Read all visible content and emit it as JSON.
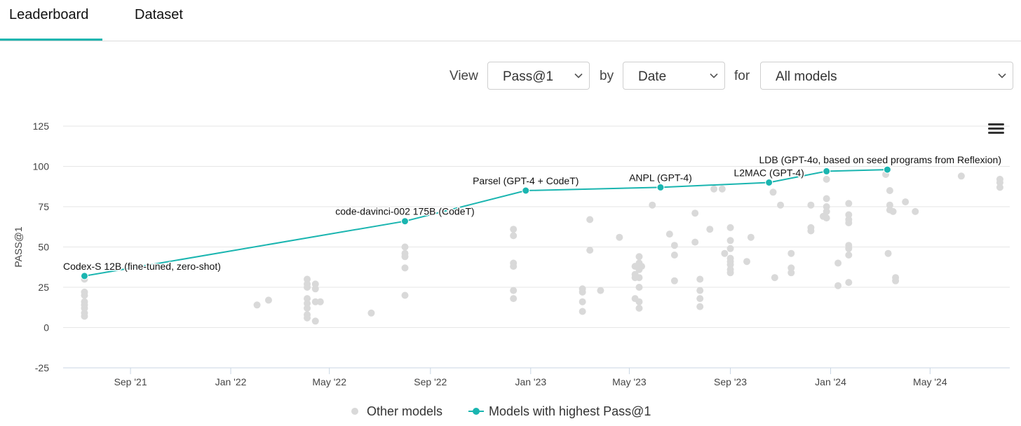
{
  "tabs": [
    {
      "label": "Leaderboard",
      "active": true
    },
    {
      "label": "Dataset",
      "active": false
    }
  ],
  "controls": {
    "view_label": "View",
    "view_value": "Pass@1",
    "by_label": "by",
    "by_value": "Date",
    "for_label": "for",
    "for_value": "All models"
  },
  "icons": {
    "menu": "hamburger-menu-icon",
    "dropdown": "chevron-down-icon"
  },
  "colors": {
    "highlight": "#1ab5b0",
    "other": "#d9d9d9",
    "grid": "#e6e6e6",
    "tab_underline": "#1ab5b0"
  },
  "chart_data": {
    "type": "scatter",
    "ylabel": "PASS@1",
    "ylim": [
      -25,
      125
    ],
    "yticks": [
      -25,
      0,
      25,
      50,
      75,
      100,
      125
    ],
    "xlim": [
      "2021-06-11",
      "2024-08-06"
    ],
    "xticks": [
      {
        "date": "2021-09-01",
        "label": "Sep '21"
      },
      {
        "date": "2022-01-01",
        "label": "Jan '22"
      },
      {
        "date": "2022-05-01",
        "label": "May '22"
      },
      {
        "date": "2022-09-01",
        "label": "Sep '22"
      },
      {
        "date": "2023-01-01",
        "label": "Jan '23"
      },
      {
        "date": "2023-05-01",
        "label": "May '23"
      },
      {
        "date": "2023-09-01",
        "label": "Sep '23"
      },
      {
        "date": "2024-01-01",
        "label": "Jan '24"
      },
      {
        "date": "2024-05-01",
        "label": "May '24"
      }
    ],
    "grid": true,
    "legend_position": "bottom-center",
    "series": [
      {
        "name": "Other models",
        "points": [
          {
            "x": "2021-07-07",
            "y": 30
          },
          {
            "x": "2021-07-07",
            "y": 22
          },
          {
            "x": "2021-07-07",
            "y": 20
          },
          {
            "x": "2021-07-07",
            "y": 16
          },
          {
            "x": "2021-07-07",
            "y": 14
          },
          {
            "x": "2021-07-07",
            "y": 12
          },
          {
            "x": "2021-07-07",
            "y": 9
          },
          {
            "x": "2021-07-07",
            "y": 7
          },
          {
            "x": "2022-02-02",
            "y": 14
          },
          {
            "x": "2022-02-16",
            "y": 17
          },
          {
            "x": "2022-04-04",
            "y": 30
          },
          {
            "x": "2022-04-04",
            "y": 27
          },
          {
            "x": "2022-04-04",
            "y": 25
          },
          {
            "x": "2022-04-04",
            "y": 18
          },
          {
            "x": "2022-04-04",
            "y": 15
          },
          {
            "x": "2022-04-04",
            "y": 12
          },
          {
            "x": "2022-04-04",
            "y": 8
          },
          {
            "x": "2022-04-04",
            "y": 6
          },
          {
            "x": "2022-04-14",
            "y": 27
          },
          {
            "x": "2022-04-14",
            "y": 24
          },
          {
            "x": "2022-04-14",
            "y": 16
          },
          {
            "x": "2022-04-14",
            "y": 4
          },
          {
            "x": "2022-04-20",
            "y": 16
          },
          {
            "x": "2022-06-21",
            "y": 9
          },
          {
            "x": "2022-08-01",
            "y": 50
          },
          {
            "x": "2022-08-01",
            "y": 46
          },
          {
            "x": "2022-08-01",
            "y": 44
          },
          {
            "x": "2022-08-01",
            "y": 37
          },
          {
            "x": "2022-08-01",
            "y": 20
          },
          {
            "x": "2022-12-11",
            "y": 61
          },
          {
            "x": "2022-12-11",
            "y": 57
          },
          {
            "x": "2022-12-11",
            "y": 40
          },
          {
            "x": "2022-12-11",
            "y": 38
          },
          {
            "x": "2022-12-11",
            "y": 23
          },
          {
            "x": "2022-12-11",
            "y": 18
          },
          {
            "x": "2023-03-05",
            "y": 24
          },
          {
            "x": "2023-03-05",
            "y": 22
          },
          {
            "x": "2023-03-05",
            "y": 16
          },
          {
            "x": "2023-03-05",
            "y": 10
          },
          {
            "x": "2023-03-14",
            "y": 67
          },
          {
            "x": "2023-03-14",
            "y": 48
          },
          {
            "x": "2023-03-27",
            "y": 23
          },
          {
            "x": "2023-04-19",
            "y": 56
          },
          {
            "x": "2023-05-08",
            "y": 18
          },
          {
            "x": "2023-05-08",
            "y": 38
          },
          {
            "x": "2023-05-08",
            "y": 33
          },
          {
            "x": "2023-05-08",
            "y": 31
          },
          {
            "x": "2023-05-13",
            "y": 44
          },
          {
            "x": "2023-05-13",
            "y": 40
          },
          {
            "x": "2023-05-13",
            "y": 36
          },
          {
            "x": "2023-05-13",
            "y": 31
          },
          {
            "x": "2023-05-13",
            "y": 25
          },
          {
            "x": "2023-05-13",
            "y": 16
          },
          {
            "x": "2023-05-13",
            "y": 12
          },
          {
            "x": "2023-05-16",
            "y": 38
          },
          {
            "x": "2023-05-29",
            "y": 76
          },
          {
            "x": "2023-06-19",
            "y": 58
          },
          {
            "x": "2023-06-25",
            "y": 51
          },
          {
            "x": "2023-06-25",
            "y": 45
          },
          {
            "x": "2023-06-25",
            "y": 29
          },
          {
            "x": "2023-07-20",
            "y": 71
          },
          {
            "x": "2023-07-20",
            "y": 53
          },
          {
            "x": "2023-07-26",
            "y": 30
          },
          {
            "x": "2023-07-26",
            "y": 23
          },
          {
            "x": "2023-07-26",
            "y": 18
          },
          {
            "x": "2023-07-26",
            "y": 13
          },
          {
            "x": "2023-08-07",
            "y": 61
          },
          {
            "x": "2023-08-12",
            "y": 86
          },
          {
            "x": "2023-08-22",
            "y": 86
          },
          {
            "x": "2023-08-25",
            "y": 46
          },
          {
            "x": "2023-09-01",
            "y": 62
          },
          {
            "x": "2023-09-01",
            "y": 54
          },
          {
            "x": "2023-09-01",
            "y": 49
          },
          {
            "x": "2023-09-01",
            "y": 43
          },
          {
            "x": "2023-09-01",
            "y": 41
          },
          {
            "x": "2023-09-01",
            "y": 39
          },
          {
            "x": "2023-09-01",
            "y": 36
          },
          {
            "x": "2023-09-01",
            "y": 34
          },
          {
            "x": "2023-09-21",
            "y": 41
          },
          {
            "x": "2023-09-26",
            "y": 56
          },
          {
            "x": "2023-10-23",
            "y": 84
          },
          {
            "x": "2023-10-25",
            "y": 31
          },
          {
            "x": "2023-11-01",
            "y": 76
          },
          {
            "x": "2023-11-14",
            "y": 46
          },
          {
            "x": "2023-11-14",
            "y": 37
          },
          {
            "x": "2023-11-14",
            "y": 34
          },
          {
            "x": "2023-12-08",
            "y": 76
          },
          {
            "x": "2023-12-08",
            "y": 62
          },
          {
            "x": "2023-12-08",
            "y": 60
          },
          {
            "x": "2023-12-23",
            "y": 69
          },
          {
            "x": "2023-12-27",
            "y": 92
          },
          {
            "x": "2023-12-27",
            "y": 80
          },
          {
            "x": "2023-12-27",
            "y": 75
          },
          {
            "x": "2023-12-27",
            "y": 72
          },
          {
            "x": "2023-12-27",
            "y": 68
          },
          {
            "x": "2024-01-10",
            "y": 40
          },
          {
            "x": "2024-01-10",
            "y": 26
          },
          {
            "x": "2024-01-23",
            "y": 77
          },
          {
            "x": "2024-01-23",
            "y": 70
          },
          {
            "x": "2024-01-23",
            "y": 67
          },
          {
            "x": "2024-01-23",
            "y": 65
          },
          {
            "x": "2024-01-23",
            "y": 51
          },
          {
            "x": "2024-01-23",
            "y": 49
          },
          {
            "x": "2024-01-23",
            "y": 45
          },
          {
            "x": "2024-01-23",
            "y": 28
          },
          {
            "x": "2024-03-08",
            "y": 95
          },
          {
            "x": "2024-03-11",
            "y": 46
          },
          {
            "x": "2024-03-13",
            "y": 85
          },
          {
            "x": "2024-03-13",
            "y": 76
          },
          {
            "x": "2024-03-13",
            "y": 73
          },
          {
            "x": "2024-03-17",
            "y": 72
          },
          {
            "x": "2024-03-20",
            "y": 31
          },
          {
            "x": "2024-03-20",
            "y": 29
          },
          {
            "x": "2024-04-01",
            "y": 78
          },
          {
            "x": "2024-04-13",
            "y": 72
          },
          {
            "x": "2024-06-08",
            "y": 94
          },
          {
            "x": "2024-07-25",
            "y": 92
          },
          {
            "x": "2024-07-25",
            "y": 90
          },
          {
            "x": "2024-07-25",
            "y": 87
          }
        ]
      },
      {
        "name": "Models with highest Pass@1",
        "points": [
          {
            "x": "2021-07-07",
            "y": 32,
            "label": "Codex-S 12B (fine-tuned, zero-shot)"
          },
          {
            "x": "2022-08-01",
            "y": 66,
            "label": "code-davinci-002 175B (CodeT)"
          },
          {
            "x": "2022-12-26",
            "y": 85,
            "label": "Parsel (GPT-4 + CodeT)"
          },
          {
            "x": "2023-06-08",
            "y": 87,
            "label": "ANPL (GPT-4)"
          },
          {
            "x": "2023-10-18",
            "y": 90,
            "label": "L2MAC (GPT-4)"
          },
          {
            "x": "2023-12-27",
            "y": 97,
            "label": ""
          },
          {
            "x": "2024-03-10",
            "y": 98,
            "label": "LDB (GPT-4o, based on seed programs from Reflexion)"
          }
        ]
      }
    ]
  }
}
